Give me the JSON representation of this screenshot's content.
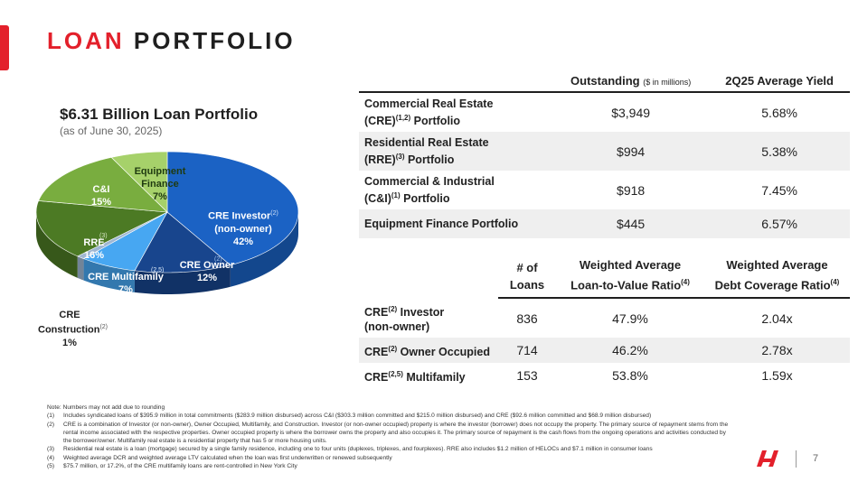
{
  "title": {
    "part1": "LOAN",
    "part2": "PORTFOLIO"
  },
  "pie": {
    "title": "$6.31 Billion Loan Portfolio",
    "subtitle": "(as of June 30, 2025)",
    "slices": [
      {
        "name": "CRE Investor (non-owner)",
        "line1": "CRE Investor",
        "line2": "(non-owner)",
        "pct_label": "42%",
        "value": 42,
        "color": "#1b62c4",
        "note": "(2)"
      },
      {
        "name": "CRE Owner",
        "line1": "CRE Owner",
        "pct_label": "12%",
        "value": 12,
        "color": "#18458d",
        "note": "(2)"
      },
      {
        "name": "CRE Multifamily",
        "line1": "CRE Multifamily",
        "pct_label": "7%",
        "value": 7,
        "color": "#47a7f2",
        "note": "(2,5)"
      },
      {
        "name": "CRE Construction",
        "line1": "CRE",
        "line2": "Construction",
        "pct_label": "1%",
        "value": 1,
        "color": "#9fb7d3",
        "note": "(2)"
      },
      {
        "name": "RRE",
        "line1": "RRE",
        "pct_label": "16%",
        "value": 16,
        "color": "#4c7a24",
        "note": "(3)"
      },
      {
        "name": "C&I",
        "line1": "C&I",
        "pct_label": "15%",
        "value": 15,
        "color": "#79ad3f"
      },
      {
        "name": "Equipment Finance",
        "line1": "Equipment",
        "line2": "Finance",
        "pct_label": "7%",
        "value": 7,
        "color": "#a6d16a"
      }
    ]
  },
  "table1": {
    "headers": {
      "outstanding": "Outstanding",
      "outstanding_unit": "($ in millions)",
      "yield": "2Q25 Average Yield"
    },
    "rows": [
      {
        "line1": "Commercial Real Estate",
        "line2": "(CRE)",
        "sup": "(1,2)",
        "line2_tail": " Portfolio",
        "outstanding": "$3,949",
        "yield": "5.68%"
      },
      {
        "line1": "Residential Real Estate",
        "line2": "(RRE)",
        "sup": "(3)",
        "line2_tail": " Portfolio",
        "outstanding": "$994",
        "yield": "5.38%"
      },
      {
        "line1": "Commercial & Industrial",
        "line2": "(C&I)",
        "sup": "(1)",
        "line2_tail": " Portfolio",
        "outstanding": "$918",
        "yield": "7.45%"
      },
      {
        "line1": "Equipment Finance Portfolio",
        "line2": "",
        "sup": "",
        "line2_tail": "",
        "outstanding": "$445",
        "yield": "6.57%"
      }
    ]
  },
  "table2": {
    "headers": {
      "loans_l1": "# of",
      "loans_l2": "Loans",
      "ltv_l1": "Weighted Average",
      "ltv_l2": "Loan-to-Value Ratio",
      "ltv_sup": "(4)",
      "dcr_l1": "Weighted Average",
      "dcr_l2": "Debt Coverage Ratio",
      "dcr_sup": "(4)"
    },
    "rows": [
      {
        "pre": "CRE",
        "sup": "(2)",
        "post": " Investor",
        "line2": "(non-owner)",
        "loans": "836",
        "ltv": "47.9%",
        "dcr": "2.04x"
      },
      {
        "pre": "CRE",
        "sup": "(2)",
        "post": " Owner Occupied",
        "line2": "",
        "loans": "714",
        "ltv": "46.2%",
        "dcr": "2.78x"
      },
      {
        "pre": "CRE",
        "sup": "(2,5)",
        "post": " Multifamily",
        "line2": "",
        "loans": "153",
        "ltv": "53.8%",
        "dcr": "1.59x"
      }
    ]
  },
  "notes": {
    "intro": "Note: Numbers may not add due to rounding",
    "items": [
      {
        "key": "(1)",
        "text": "Includes syndicated loans of $395.9 million in total commitments ($283.9 million disbursed) across C&I ($303.3 million committed and $215.0 million disbursed) and CRE ($92.6 million committed and $68.9 million disbursed)"
      },
      {
        "key": "(2)",
        "text": "CRE is a combination of Investor (or non-owner), Owner Occupied, Multifamily, and Construction. Investor (or non-owner occupied) property is where the investor (borrower) does not occupy the property. The primary source of repayment stems from the rental income associated with the respective properties. Owner occupied property is where the borrower owns the property and also occupies it. The primary source of repayment is the cash flows from the ongoing operations and activities conducted by the borrower/owner. Multifamily real estate is a residential property that has 5 or more housing units."
      },
      {
        "key": "(3)",
        "text": "Residential real estate is a loan (mortgage) secured by a single family residence, including one to four units (duplexes, triplexes, and fourplexes). RRE also includes $1.2 million of HELOCs and $7.1 million in consumer loans"
      },
      {
        "key": "(4)",
        "text": "Weighted average DCR and weighted average LTV calculated when the loan was first underwritten or renewed subsequently"
      },
      {
        "key": "(5)",
        "text": "$75.7 million, or 17.2%, of the CRE multifamily loans are rent-controlled in New York City"
      }
    ]
  },
  "page_number": "7",
  "colors": {
    "accent": "#e3202b"
  }
}
